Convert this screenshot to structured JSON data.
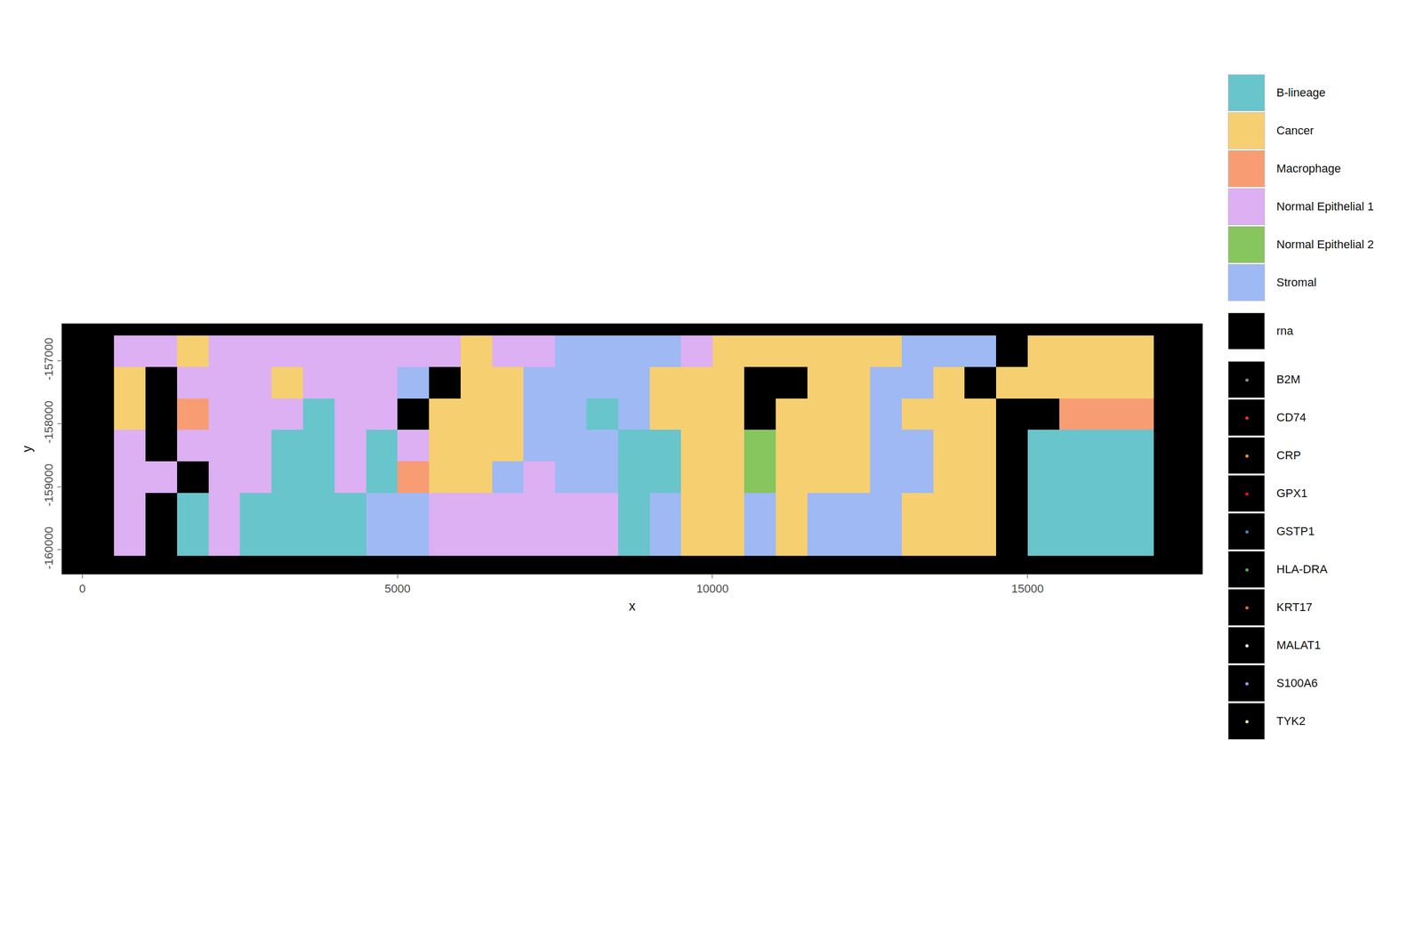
{
  "chart_data": {
    "type": "spatial",
    "x_title": "x",
    "y_title": "y",
    "xlim": [
      -330,
      17780
    ],
    "ylim": [
      -160390,
      -156410
    ],
    "xticks": [
      0,
      5000,
      10000,
      15000
    ],
    "yticks": [
      -160000,
      -159000,
      -158000,
      -157000
    ],
    "x": [
      750,
      1250,
      1750,
      2250,
      2750,
      3250,
      3750,
      4250,
      4750,
      5250,
      5750,
      6250,
      6750,
      7250,
      7750,
      8250,
      8750,
      9250,
      9750,
      10250,
      10750,
      11250,
      11750,
      12250,
      12750,
      13250,
      13750,
      14250,
      14750,
      15250,
      15750,
      16250,
      16750
    ],
    "y": [
      -156850,
      -157350,
      -157850,
      -158350,
      -158850,
      -159350,
      -159850
    ],
    "series": [
      {
        "name": "B-lineage",
        "color": "#68c5cb"
      },
      {
        "name": "Cancer",
        "color": "#f6cf71"
      },
      {
        "name": "Macrophage",
        "color": "#f89c74"
      },
      {
        "name": "Normal Epithelial 1",
        "color": "#dcb0f2"
      },
      {
        "name": "Normal Epithelial 2",
        "color": "#87c55f"
      },
      {
        "name": "Stromal",
        "color": "#9eb9f3"
      }
    ],
    "cells": [
      [
        3,
        3,
        1,
        3,
        3,
        3,
        3,
        3,
        3,
        3,
        3,
        1,
        3,
        3,
        5,
        5,
        5,
        5,
        3,
        1,
        1,
        1,
        1,
        1,
        1,
        5,
        5,
        5,
        null,
        1,
        1,
        1,
        1
      ],
      [
        1,
        null,
        3,
        3,
        3,
        1,
        3,
        3,
        3,
        5,
        null,
        1,
        1,
        5,
        5,
        5,
        5,
        1,
        1,
        1,
        null,
        null,
        1,
        1,
        5,
        5,
        1,
        null,
        1,
        1,
        1,
        1,
        1
      ],
      [
        1,
        null,
        2,
        3,
        3,
        3,
        0,
        3,
        3,
        null,
        1,
        1,
        1,
        5,
        5,
        0,
        5,
        1,
        1,
        1,
        null,
        1,
        1,
        1,
        5,
        1,
        1,
        1,
        null,
        null,
        2,
        2,
        2
      ],
      [
        3,
        null,
        3,
        3,
        3,
        0,
        0,
        3,
        0,
        3,
        1,
        1,
        1,
        5,
        5,
        5,
        0,
        0,
        1,
        1,
        4,
        1,
        1,
        1,
        5,
        5,
        1,
        1,
        null,
        0,
        0,
        0,
        0
      ],
      [
        3,
        3,
        null,
        3,
        3,
        0,
        0,
        3,
        0,
        2,
        1,
        1,
        5,
        3,
        5,
        5,
        0,
        0,
        1,
        1,
        4,
        1,
        1,
        1,
        5,
        5,
        1,
        1,
        null,
        0,
        0,
        0,
        0
      ],
      [
        3,
        null,
        0,
        3,
        0,
        0,
        0,
        0,
        5,
        5,
        3,
        3,
        3,
        3,
        3,
        3,
        0,
        5,
        1,
        1,
        5,
        1,
        5,
        5,
        5,
        1,
        1,
        1,
        null,
        0,
        0,
        0,
        0
      ],
      [
        3,
        null,
        0,
        3,
        0,
        0,
        0,
        0,
        5,
        5,
        3,
        3,
        3,
        3,
        3,
        3,
        0,
        5,
        1,
        1,
        5,
        1,
        5,
        5,
        5,
        1,
        1,
        1,
        null,
        0,
        0,
        0,
        0
      ]
    ],
    "rna": {
      "name": "rna",
      "color": "#000000"
    },
    "genes": [
      {
        "name": "B2M",
        "color": "#8c8c8c"
      },
      {
        "name": "CD74",
        "color": "#e8392d"
      },
      {
        "name": "CRP",
        "color": "#f08a3c"
      },
      {
        "name": "GPX1",
        "color": "#d7191c"
      },
      {
        "name": "GSTP1",
        "color": "#4a7fc1"
      },
      {
        "name": "HLA-DRA",
        "color": "#4daf4a"
      },
      {
        "name": "KRT17",
        "color": "#e0673a"
      },
      {
        "name": "MALAT1",
        "color": "#f0f0f0"
      },
      {
        "name": "S100A6",
        "color": "#b38cf0"
      },
      {
        "name": "TYK2",
        "color": "#e6e68a"
      }
    ]
  }
}
